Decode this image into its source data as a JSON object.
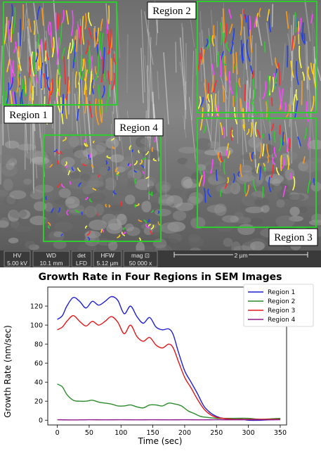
{
  "image": {
    "region_labels": [
      "Region 1",
      "Region 2",
      "Region 3",
      "Region 4"
    ],
    "region_box_color": "#2ecc2e",
    "info_bar": {
      "fields": [
        {
          "name": "HV",
          "value": "5.00 kV"
        },
        {
          "name": "WD",
          "value": "10.1 mm"
        },
        {
          "name": "det",
          "value": "LFD"
        },
        {
          "name": "HFW",
          "value": "5.12 µm"
        },
        {
          "name": "mag ⊡",
          "value": "50 000 x"
        }
      ],
      "scale_bar": "2 µm"
    },
    "track_colors": [
      "#1f3fff",
      "#ff2a2a",
      "#2ad02a",
      "#ffd11a",
      "#ff44ff",
      "#ff9a1a",
      "#ffff4a"
    ]
  },
  "chart_data": {
    "type": "line",
    "title": "Growth Rate in Four Regions in SEM Images",
    "xlabel": "Time (sec)",
    "ylabel": "Growth Rate (nm/sec)",
    "xlim": [
      -15,
      360
    ],
    "ylim": [
      -5,
      140
    ],
    "xticks": [
      0,
      50,
      100,
      150,
      200,
      250,
      300,
      350
    ],
    "yticks": [
      0,
      20,
      40,
      60,
      80,
      100,
      120
    ],
    "grid": false,
    "legend_position": "top-right",
    "series": [
      {
        "name": "Region 1",
        "color": "#1f1fd0",
        "x": [
          0,
          8,
          15,
          25,
          35,
          45,
          55,
          65,
          75,
          85,
          95,
          105,
          115,
          125,
          135,
          145,
          155,
          165,
          175,
          182,
          190,
          200,
          210,
          220,
          230,
          240,
          250,
          260,
          275,
          290,
          300,
          320,
          350
        ],
        "y": [
          106,
          110,
          120,
          129,
          125,
          118,
          125,
          121,
          125,
          130,
          126,
          112,
          120,
          109,
          102,
          108,
          98,
          95,
          96,
          90,
          72,
          52,
          40,
          28,
          15,
          8,
          4,
          2,
          1,
          1,
          0,
          0,
          1
        ]
      },
      {
        "name": "Region 2",
        "color": "#2a8c2a",
        "x": [
          0,
          8,
          15,
          25,
          35,
          45,
          55,
          65,
          75,
          85,
          95,
          105,
          115,
          125,
          135,
          145,
          155,
          165,
          175,
          185,
          195,
          205,
          215,
          225,
          235,
          250,
          265,
          280,
          300,
          320,
          350
        ],
        "y": [
          38,
          35,
          27,
          21,
          20,
          20,
          21,
          19,
          18,
          17,
          15,
          15,
          16,
          14,
          13,
          16,
          16,
          15,
          18,
          17,
          15,
          10,
          7,
          4,
          3,
          2,
          2,
          2,
          2,
          1,
          2
        ]
      },
      {
        "name": "Region 3",
        "color": "#e01818",
        "x": [
          0,
          8,
          15,
          25,
          35,
          45,
          55,
          65,
          75,
          85,
          95,
          105,
          115,
          125,
          135,
          145,
          155,
          165,
          175,
          182,
          190,
          200,
          210,
          220,
          230,
          240,
          250,
          260,
          275,
          290,
          300,
          320,
          350
        ],
        "y": [
          95,
          98,
          104,
          110,
          104,
          99,
          104,
          100,
          104,
          109,
          103,
          91,
          100,
          88,
          83,
          87,
          79,
          76,
          80,
          76,
          62,
          45,
          34,
          22,
          12,
          6,
          3,
          2,
          1,
          1,
          1,
          1,
          1
        ]
      },
      {
        "name": "Region 4",
        "color": "#8c1a8c",
        "x": [
          0,
          25,
          50,
          75,
          100,
          125,
          150,
          175,
          200,
          225,
          250,
          275,
          300,
          325,
          350
        ],
        "y": [
          0.5,
          0.3,
          0.5,
          0.4,
          0.5,
          0.4,
          0.5,
          0.4,
          0.5,
          0.4,
          0.5,
          0.4,
          0.5,
          0.4,
          0.5
        ]
      }
    ]
  }
}
